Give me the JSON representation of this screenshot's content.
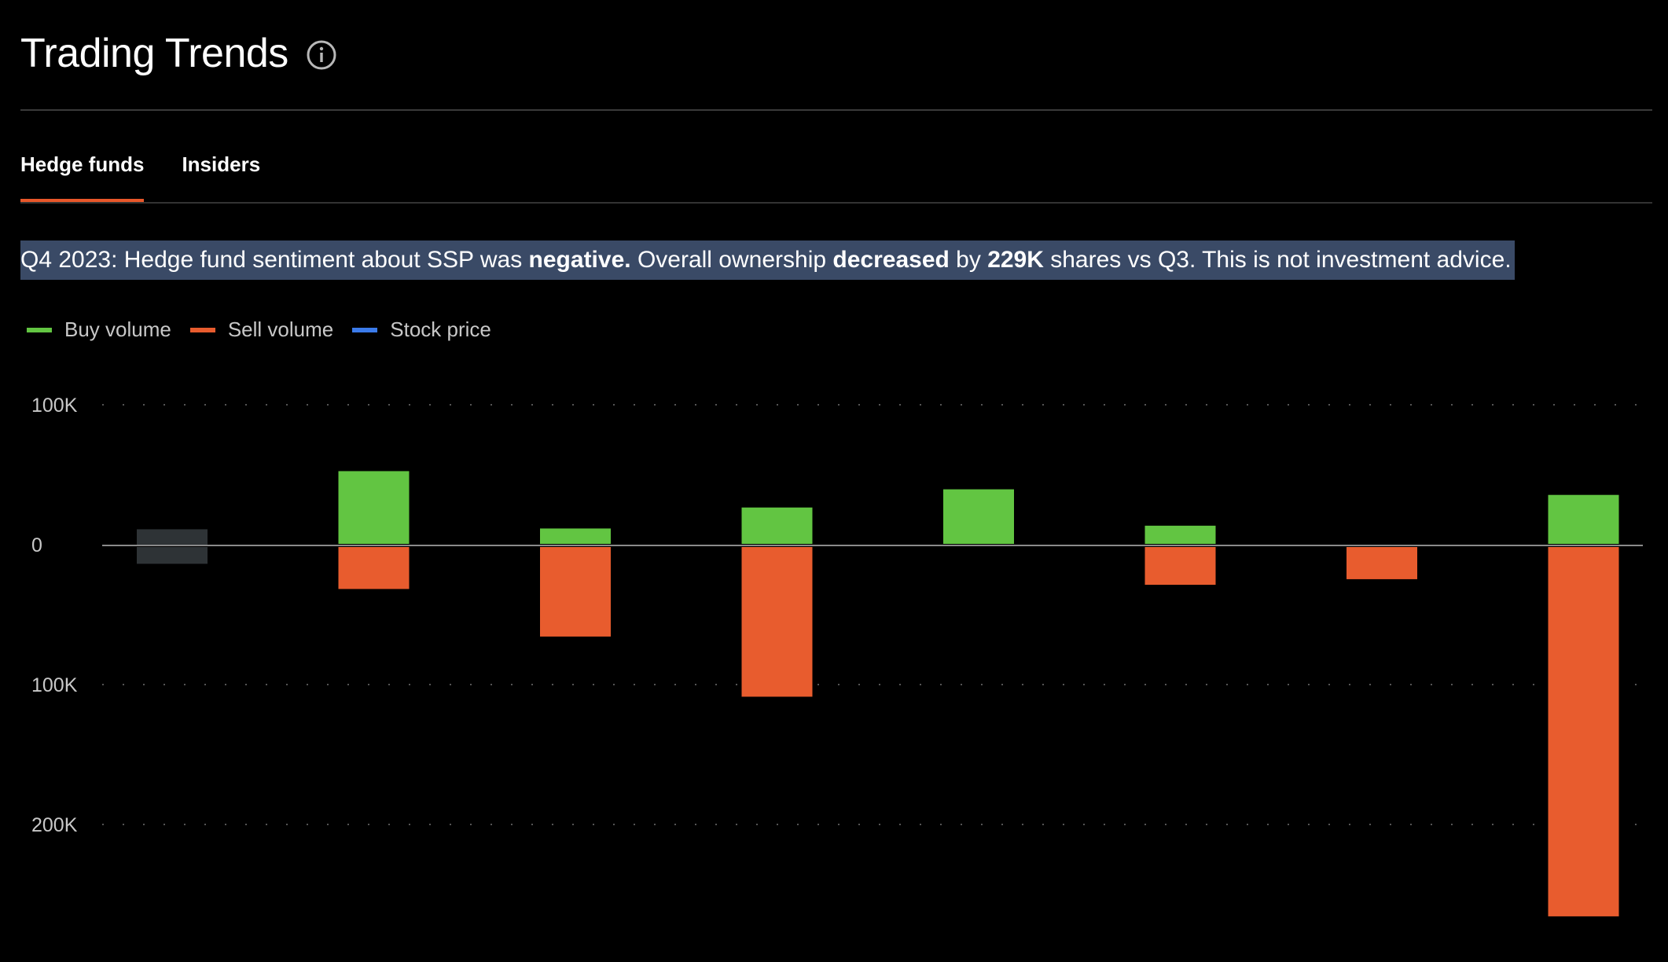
{
  "header": {
    "title": "Trading Trends",
    "info_icon": "info-circle-icon"
  },
  "tabs": [
    {
      "label": "Hedge funds",
      "active": true
    },
    {
      "label": "Insiders",
      "active": false
    }
  ],
  "summary": {
    "prefix": "Q4 2023: Hedge fund sentiment about SSP was ",
    "sentiment": "negative.",
    "middle": " Overall ownership ",
    "direction": "decreased",
    "by": " by ",
    "amount": "229K",
    "suffix": " shares vs Q3. This is not investment advice."
  },
  "legend": [
    {
      "label": "Buy volume",
      "color": "#62c542"
    },
    {
      "label": "Sell volume",
      "color": "#e85c2e"
    },
    {
      "label": "Stock price",
      "color": "#3b7bea"
    }
  ],
  "colors": {
    "buy": "#62c542",
    "sell": "#e85c2e",
    "placeholder": "#2e3336",
    "grid": "#555555",
    "zero_line": "#8a8a8a"
  },
  "chart_data": {
    "type": "bar",
    "series": [
      {
        "name": "Buy volume",
        "values": [
          11000,
          52000,
          11000,
          26000,
          39000,
          13000,
          0,
          35000
        ]
      },
      {
        "name": "Sell volume",
        "values": [
          -12000,
          -30000,
          -64000,
          -107000,
          0,
          -27000,
          -23000,
          -264000
        ]
      }
    ],
    "placeholder_index": 0,
    "yticks": [
      {
        "value": 100000,
        "label": "100K"
      },
      {
        "value": 0,
        "label": "0"
      },
      {
        "value": -100000,
        "label": "100K"
      },
      {
        "value": -200000,
        "label": "200K"
      }
    ],
    "ylim": [
      -280000,
      105000
    ],
    "grid": true,
    "legend_position": "top-left"
  }
}
